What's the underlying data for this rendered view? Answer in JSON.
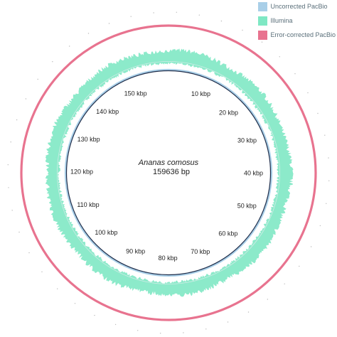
{
  "genome": {
    "species": "Ananas comosus",
    "length_label": "159636 bp",
    "length_bp": 159636
  },
  "legend": [
    {
      "label": "Uncorrected PacBio",
      "color": "#a9cfe8"
    },
    {
      "label": "Illumina",
      "color": "#7fe8c4"
    },
    {
      "label": "Error-corrected PacBio",
      "color": "#e8738f"
    }
  ],
  "ticks": [
    {
      "label": "10 kbp",
      "position_bp": 10000
    },
    {
      "label": "20 kbp",
      "position_bp": 20000
    },
    {
      "label": "30 kbp",
      "position_bp": 30000
    },
    {
      "label": "40 kbp",
      "position_bp": 40000
    },
    {
      "label": "50 kbp",
      "position_bp": 50000
    },
    {
      "label": "60 kbp",
      "position_bp": 60000
    },
    {
      "label": "70 kbp",
      "position_bp": 70000
    },
    {
      "label": "80 kbp",
      "position_bp": 80000
    },
    {
      "label": "90 kbp",
      "position_bp": 90000
    },
    {
      "label": "100 kbp",
      "position_bp": 100000
    },
    {
      "label": "110 kbp",
      "position_bp": 110000
    },
    {
      "label": "120 kbp",
      "position_bp": 120000
    },
    {
      "label": "130 kbp",
      "position_bp": 130000
    },
    {
      "label": "140 kbp",
      "position_bp": 140000
    },
    {
      "label": "150 kbp",
      "position_bp": 150000
    }
  ]
}
